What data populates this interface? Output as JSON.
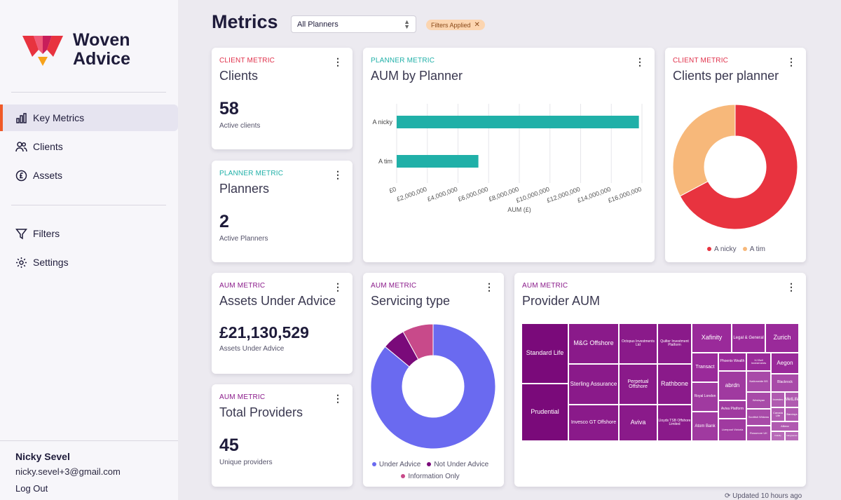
{
  "brand": {
    "name_line1": "Woven",
    "name_line2": "Advice"
  },
  "nav": {
    "key_metrics": "Key Metrics",
    "clients": "Clients",
    "assets": "Assets",
    "filters": "Filters",
    "settings": "Settings"
  },
  "user": {
    "name": "Nicky Sevel",
    "email": "nicky.sevel+3@gmail.com",
    "logout": "Log Out"
  },
  "header": {
    "title": "Metrics",
    "planner_select": "All Planners",
    "filter_chip": "Filters Applied"
  },
  "cards": {
    "clients": {
      "tag": "CLIENT METRIC",
      "title": "Clients",
      "value": "58",
      "sub": "Active clients"
    },
    "planners": {
      "tag": "PLANNER METRIC",
      "title": "Planners",
      "value": "2",
      "sub": "Active Planners"
    },
    "aum": {
      "tag": "AUM METRIC",
      "title": "Assets Under Advice",
      "value": "£21,130,529",
      "sub": "Assets Under Advice"
    },
    "providers": {
      "tag": "AUM METRIC",
      "title": "Total Providers",
      "value": "45",
      "sub": "Unique providers"
    },
    "aum_by_planner": {
      "tag": "PLANNER METRIC",
      "title": "AUM by Planner"
    },
    "clients_per_planner": {
      "tag": "CLIENT METRIC",
      "title": "Clients per planner"
    },
    "servicing_type": {
      "tag": "AUM METRIC",
      "title": "Servicing type"
    },
    "provider_aum": {
      "tag": "AUM METRIC",
      "title": "Provider AUM"
    }
  },
  "updated_text": "Updated 10 hours ago",
  "colors": {
    "accent": "#f05a28",
    "teal": "#20b0a8",
    "red": "#e8333f",
    "peach": "#f7b87a",
    "indigo": "#6a6af0",
    "purple": "#7a0a7a",
    "pink": "#c84a8a",
    "treemap": "#8a1a8a"
  },
  "chart_data": [
    {
      "type": "bar",
      "orientation": "horizontal",
      "categories": [
        "A nicky",
        "A tim"
      ],
      "values": [
        15800000,
        5330000
      ],
      "xlabel": "AUM (£)",
      "xlim": [
        0,
        16000000
      ],
      "ticks": [
        "£0",
        "£2,000,000",
        "£4,000,000",
        "£6,000,000",
        "£8,000,000",
        "£10,000,000",
        "£12,000,000",
        "£14,000,000",
        "£16,000,000"
      ],
      "color": "#20b0a8"
    },
    {
      "type": "pie",
      "donut": true,
      "labels": [
        "A nicky",
        "A tim"
      ],
      "values": [
        39,
        19
      ],
      "colors": [
        "#e8333f",
        "#f7b87a"
      ]
    },
    {
      "type": "pie",
      "donut": true,
      "labels": [
        "Under Advice",
        "Not Under Advice",
        "Information Only"
      ],
      "values": [
        86,
        6,
        8
      ],
      "colors": [
        "#6a6af0",
        "#7a0a7a",
        "#c84a8a"
      ]
    },
    {
      "type": "treemap",
      "labels": [
        "Standard Life",
        "Prudential",
        "M&G Offshore",
        "Sterling Assurance",
        "Invesco GT Offshore",
        "Octopus Investments Ltd",
        "Perpetual Offshore",
        "Aviva",
        "Quilter Investment Platform",
        "Rathbone",
        "Lloyds TSB Offshore Limited",
        "Xafinity",
        "Legal & General",
        "Zurich",
        "Transact",
        "Phoenix Wealth",
        "XJ Bell Investments",
        "Aegon",
        "abrdn",
        "Royal London",
        "Aviva Platform",
        "Atom Bank",
        "Liverpool Victoria",
        "Nationwide BS",
        "Blackrock",
        "Wesleyan",
        "Scottish Widows",
        "Rossmore UK",
        "Investec",
        "MetLife",
        "Canada Life",
        "Barclays",
        "Allianz",
        "Fidelity",
        "Hargreaves"
      ]
    }
  ]
}
